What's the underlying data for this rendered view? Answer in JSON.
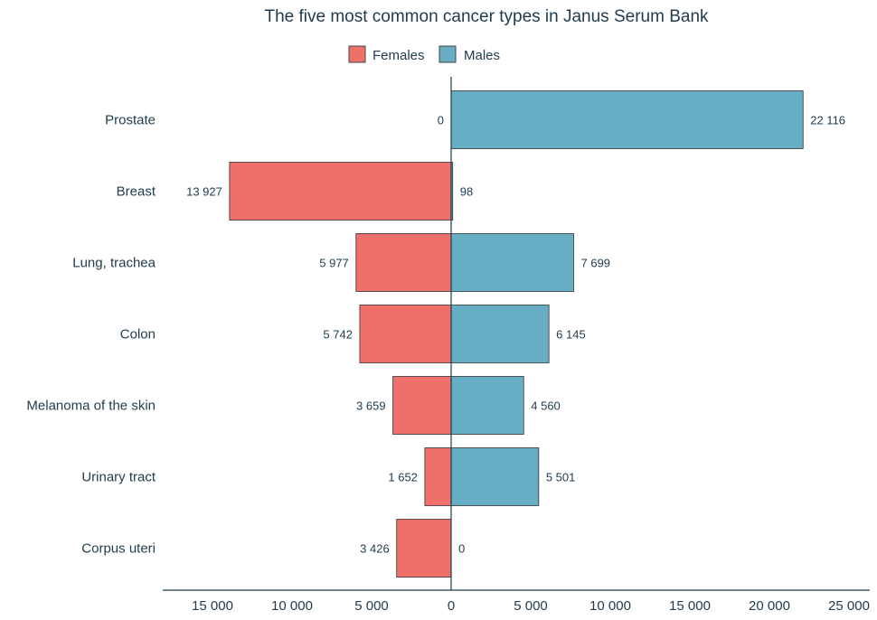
{
  "chart_data": {
    "type": "bar",
    "orientation": "horizontal-diverging",
    "title": "The five most common cancer types in Janus Serum Bank",
    "categories": [
      "Prostate",
      "Breast",
      "Lung, trachea",
      "Colon",
      "Melanoma of the skin",
      "Urinary tract",
      "Corpus uteri"
    ],
    "series": [
      {
        "name": "Females",
        "color": "#ef6f6a",
        "values": [
          0,
          13927,
          5977,
          5742,
          3659,
          1652,
          3426
        ],
        "value_labels": [
          "0",
          "13 927",
          "5 977",
          "5 742",
          "3 659",
          "1 652",
          "3 426"
        ]
      },
      {
        "name": "Males",
        "color": "#67aec4",
        "values": [
          22116,
          98,
          7699,
          6145,
          4560,
          5501,
          0
        ],
        "value_labels": [
          "22 116",
          "98",
          "7 699",
          "6 145",
          "4 560",
          "5 501",
          "0"
        ]
      }
    ],
    "xlim": [
      -18000,
      26000
    ],
    "xticks": [
      -15000,
      -10000,
      -5000,
      0,
      5000,
      10000,
      15000,
      20000,
      25000
    ],
    "xtick_labels": [
      "15 000",
      "10 000",
      "5 000",
      "0",
      "5 000",
      "10 000",
      "15 000",
      "20 000",
      "25 000"
    ],
    "legend_position": "top-center",
    "grid": false
  }
}
